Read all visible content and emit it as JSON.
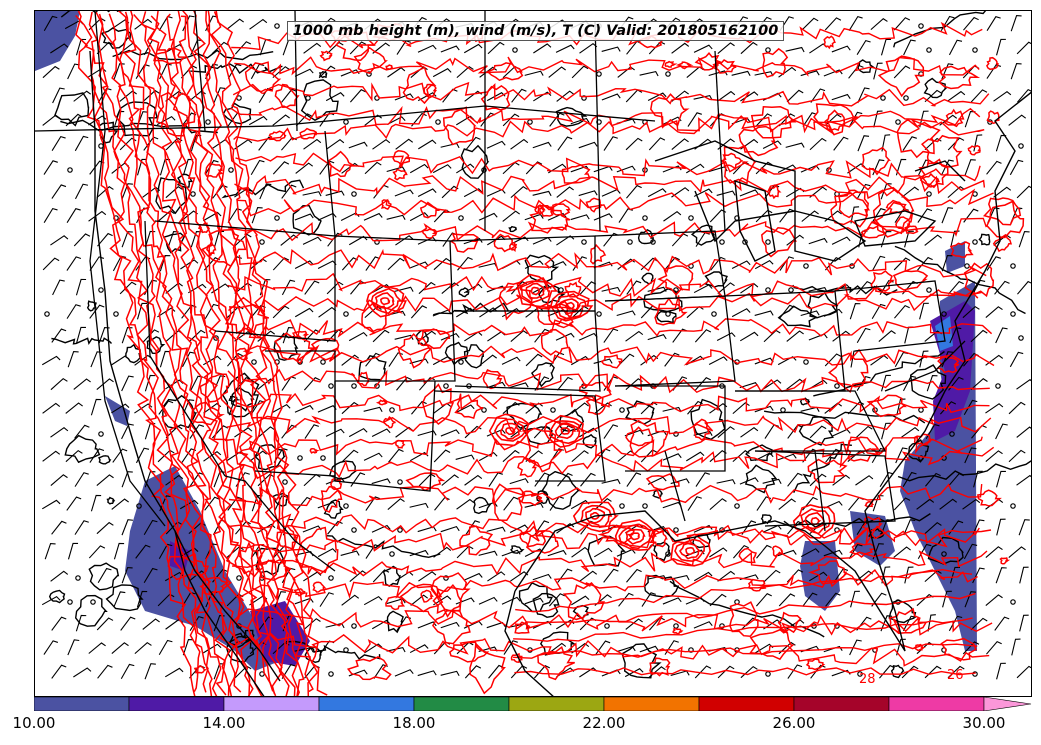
{
  "title": "1000 mb height (m), wind (m/s), T (C) Valid: 201805162100",
  "colorbar": {
    "colors": [
      "#4b52a2",
      "#4f1aa6",
      "#c49afc",
      "#3378e0",
      "#228b45",
      "#9ca712",
      "#f27300",
      "#d10000",
      "#a5042a",
      "#ee3aa5"
    ],
    "extend_color": "#fb97d9",
    "ticks": [
      "10.00",
      "14.00",
      "18.00",
      "22.00",
      "26.00",
      "30.00"
    ],
    "min": 10,
    "max": 30,
    "step": 2
  },
  "contour_labels": [
    "28",
    "26"
  ],
  "colors": {
    "temperature_contour": "#ff0000",
    "height_contour": "#000000",
    "borders": "#000000"
  }
}
